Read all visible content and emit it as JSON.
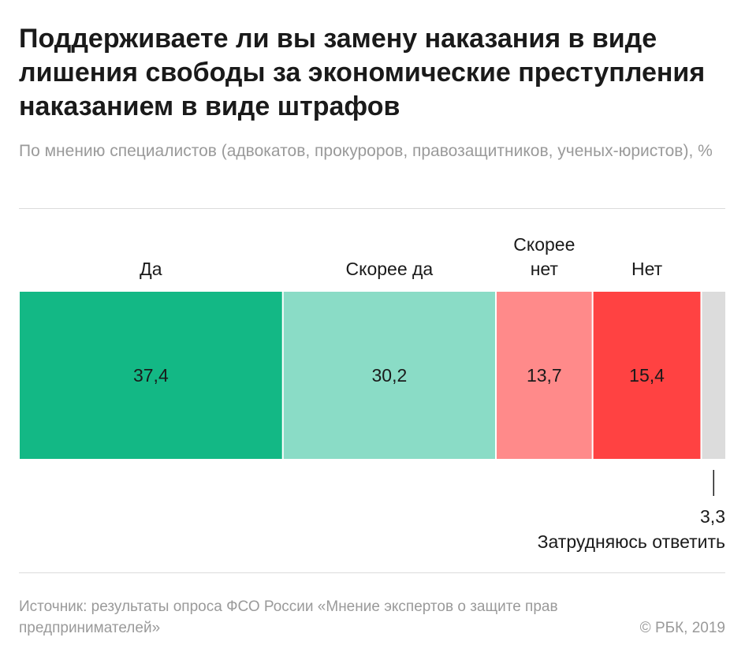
{
  "title": "Поддерживаете ли вы замену наказания в виде лишения свободы за экономические преступления наказанием в виде штрафов",
  "subtitle": "По мнению специалистов (адвокатов, прокуроров, правозащитников, ученых-юристов), %",
  "footer": {
    "source": "Источник: результаты опроса ФСО России «Мнение экспертов о защите прав предпринимателей»",
    "copyright": "© РБК, 2019"
  },
  "chart_data": {
    "type": "bar",
    "orientation": "horizontal-stacked-100",
    "unit": "%",
    "categories": [
      "Да",
      "Скорее да",
      "Скорее нет",
      "Нет",
      "Затрудняюсь ответить"
    ],
    "values": [
      37.4,
      30.2,
      13.7,
      15.4,
      3.3
    ],
    "value_labels": [
      "37,4",
      "30,2",
      "13,7",
      "15,4",
      "3,3"
    ],
    "colors": [
      "#13b885",
      "#8adcc6",
      "#ff8a8a",
      "#ff4242",
      "#dcdcdc"
    ],
    "label_colors": [
      "#1a1a1a",
      "#1a1a1a",
      "#1a1a1a",
      "#1a1a1a",
      "#1a1a1a"
    ],
    "legend": "none"
  }
}
